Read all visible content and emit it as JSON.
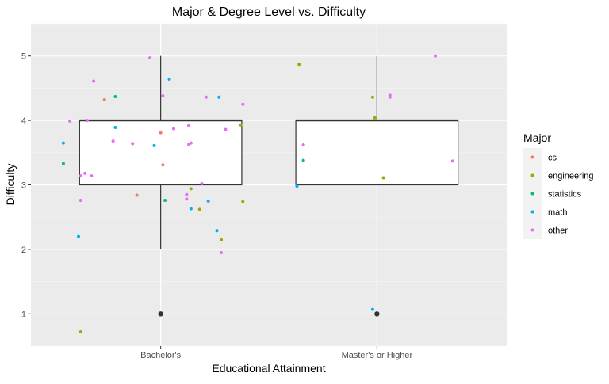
{
  "chart_data": {
    "type": "boxplot-jitter",
    "title": "Major & Degree Level vs. Difficulty",
    "xlabel": "Educational Attainment",
    "ylabel": "Difficulty",
    "categories": [
      "Bachelor's",
      "Master's or Higher"
    ],
    "ylim": [
      0.5,
      5.5
    ],
    "yticks": [
      1,
      2,
      3,
      4,
      5
    ],
    "grid": true,
    "legend": {
      "title": "Major",
      "position": "right",
      "entries": [
        {
          "label": "cs",
          "color": "#F8766D"
        },
        {
          "label": "engineering",
          "color": "#A3A500"
        },
        {
          "label": "statistics",
          "color": "#00BF7D"
        },
        {
          "label": "math",
          "color": "#00B0F6"
        },
        {
          "label": "other",
          "color": "#E76BF3"
        }
      ]
    },
    "boxes": [
      {
        "category": "Bachelor's",
        "whisker_low": 2,
        "q1": 3,
        "median": 4,
        "q3": 4,
        "whisker_high": 5,
        "outliers": [
          1
        ]
      },
      {
        "category": "Master's or Higher",
        "whisker_low": 3,
        "q1": 3,
        "median": 4,
        "q3": 4,
        "whisker_high": 5,
        "outliers": [
          1
        ]
      }
    ],
    "points": [
      {
        "x": 0.95,
        "y": 4.97,
        "major": "other"
      },
      {
        "x": 1.04,
        "y": 4.64,
        "major": "math"
      },
      {
        "x": 0.69,
        "y": 4.61,
        "major": "other"
      },
      {
        "x": 0.79,
        "y": 4.37,
        "major": "statistics"
      },
      {
        "x": 1.01,
        "y": 4.38,
        "major": "other"
      },
      {
        "x": 0.74,
        "y": 4.32,
        "major": "cs"
      },
      {
        "x": 1.21,
        "y": 4.36,
        "major": "other"
      },
      {
        "x": 1.27,
        "y": 4.36,
        "major": "math"
      },
      {
        "x": 1.38,
        "y": 4.25,
        "major": "other"
      },
      {
        "x": 0.58,
        "y": 3.99,
        "major": "other"
      },
      {
        "x": 0.66,
        "y": 4.0,
        "major": "other"
      },
      {
        "x": 0.79,
        "y": 3.89,
        "major": "math"
      },
      {
        "x": 1.3,
        "y": 3.86,
        "major": "other"
      },
      {
        "x": 1.37,
        "y": 3.93,
        "major": "engineering"
      },
      {
        "x": 1.06,
        "y": 3.87,
        "major": "other"
      },
      {
        "x": 1.13,
        "y": 3.92,
        "major": "other"
      },
      {
        "x": 1.0,
        "y": 3.81,
        "major": "cs"
      },
      {
        "x": 0.55,
        "y": 3.65,
        "major": "math"
      },
      {
        "x": 0.78,
        "y": 3.68,
        "major": "other"
      },
      {
        "x": 0.87,
        "y": 3.64,
        "major": "other"
      },
      {
        "x": 0.97,
        "y": 3.61,
        "major": "math"
      },
      {
        "x": 1.13,
        "y": 3.63,
        "major": "other"
      },
      {
        "x": 1.14,
        "y": 3.65,
        "major": "other"
      },
      {
        "x": 0.55,
        "y": 3.33,
        "major": "statistics"
      },
      {
        "x": 1.01,
        "y": 3.31,
        "major": "cs"
      },
      {
        "x": 0.63,
        "y": 3.14,
        "major": "other"
      },
      {
        "x": 0.65,
        "y": 3.18,
        "major": "other"
      },
      {
        "x": 0.68,
        "y": 3.14,
        "major": "other"
      },
      {
        "x": 1.19,
        "y": 3.02,
        "major": "other"
      },
      {
        "x": 1.14,
        "y": 2.94,
        "major": "engineering"
      },
      {
        "x": 0.89,
        "y": 2.84,
        "major": "cs"
      },
      {
        "x": 1.12,
        "y": 2.85,
        "major": "other"
      },
      {
        "x": 0.63,
        "y": 2.76,
        "major": "other"
      },
      {
        "x": 1.02,
        "y": 2.76,
        "major": "statistics"
      },
      {
        "x": 1.12,
        "y": 2.78,
        "major": "other"
      },
      {
        "x": 1.22,
        "y": 2.75,
        "major": "math"
      },
      {
        "x": 1.38,
        "y": 2.74,
        "major": "engineering"
      },
      {
        "x": 1.14,
        "y": 2.63,
        "major": "math"
      },
      {
        "x": 1.18,
        "y": 2.62,
        "major": "engineering"
      },
      {
        "x": 1.26,
        "y": 2.29,
        "major": "math"
      },
      {
        "x": 0.62,
        "y": 2.2,
        "major": "math"
      },
      {
        "x": 1.28,
        "y": 2.15,
        "major": "engineering"
      },
      {
        "x": 1.28,
        "y": 1.95,
        "major": "other"
      },
      {
        "x": 0.63,
        "y": 0.72,
        "major": "engineering"
      },
      {
        "x": 1.64,
        "y": 4.87,
        "major": "engineering"
      },
      {
        "x": 2.27,
        "y": 5.0,
        "major": "other"
      },
      {
        "x": 1.98,
        "y": 4.36,
        "major": "engineering"
      },
      {
        "x": 2.06,
        "y": 4.36,
        "major": "other"
      },
      {
        "x": 2.06,
        "y": 4.39,
        "major": "other"
      },
      {
        "x": 1.99,
        "y": 4.04,
        "major": "engineering"
      },
      {
        "x": 1.66,
        "y": 3.62,
        "major": "other"
      },
      {
        "x": 1.66,
        "y": 3.38,
        "major": "statistics"
      },
      {
        "x": 2.35,
        "y": 3.37,
        "major": "other"
      },
      {
        "x": 2.03,
        "y": 3.11,
        "major": "engineering"
      },
      {
        "x": 1.63,
        "y": 2.98,
        "major": "math"
      },
      {
        "x": 1.98,
        "y": 1.07,
        "major": "math"
      }
    ]
  }
}
